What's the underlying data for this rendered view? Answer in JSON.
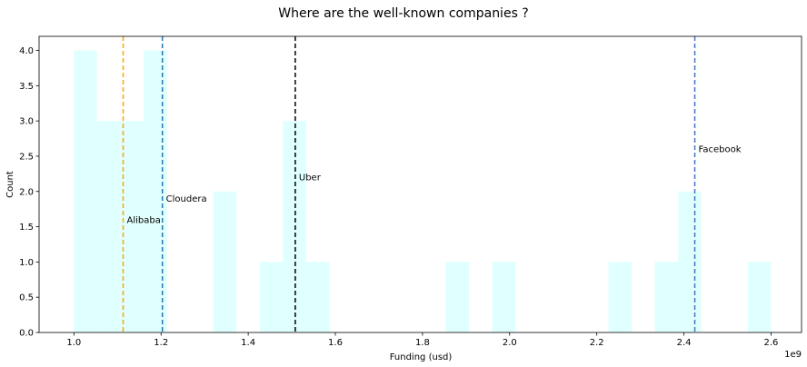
{
  "chart_data": {
    "type": "bar",
    "title": "Where are the well-known companies ?",
    "xlabel": "Funding (usd)",
    "ylabel": "Count",
    "x_offset_label": "1e9",
    "xlim": [
      0.92,
      2.67
    ],
    "ylim": [
      0,
      4.2
    ],
    "grid": false,
    "bar_color": "#e0ffff",
    "x_ticks": [
      1.0,
      1.2,
      1.4,
      1.6,
      1.8,
      2.0,
      2.2,
      2.4,
      2.6
    ],
    "x_tick_labels": [
      "1.0",
      "1.2",
      "1.4",
      "1.6",
      "1.8",
      "2.0",
      "2.2",
      "2.4",
      "2.6"
    ],
    "y_ticks": [
      0.0,
      0.5,
      1.0,
      1.5,
      2.0,
      2.5,
      3.0,
      3.5,
      4.0
    ],
    "y_tick_labels": [
      "0.0",
      "0.5",
      "1.0",
      "1.5",
      "2.0",
      "2.5",
      "3.0",
      "3.5",
      "4.0"
    ],
    "bins": [
      {
        "start": 1.0,
        "end": 1.053,
        "count": 4
      },
      {
        "start": 1.053,
        "end": 1.107,
        "count": 3
      },
      {
        "start": 1.107,
        "end": 1.16,
        "count": 3
      },
      {
        "start": 1.16,
        "end": 1.213,
        "count": 4
      },
      {
        "start": 1.32,
        "end": 1.373,
        "count": 2
      },
      {
        "start": 1.427,
        "end": 1.48,
        "count": 1
      },
      {
        "start": 1.48,
        "end": 1.533,
        "count": 3
      },
      {
        "start": 1.533,
        "end": 1.587,
        "count": 1
      },
      {
        "start": 1.853,
        "end": 1.907,
        "count": 1
      },
      {
        "start": 1.96,
        "end": 2.013,
        "count": 1
      },
      {
        "start": 2.227,
        "end": 2.28,
        "count": 1
      },
      {
        "start": 2.333,
        "end": 2.387,
        "count": 1
      },
      {
        "start": 2.387,
        "end": 2.44,
        "count": 2
      },
      {
        "start": 2.547,
        "end": 2.6,
        "count": 1
      }
    ],
    "markers": [
      {
        "label": "Alibaba",
        "x": 1.113,
        "label_y": 1.6,
        "color": "#ffa500"
      },
      {
        "label": "Cloudera",
        "x": 1.203,
        "label_y": 1.9,
        "color": "#1f77b4"
      },
      {
        "label": "Uber",
        "x": 1.508,
        "label_y": 2.2,
        "color": "#000000"
      },
      {
        "label": "Facebook",
        "x": 2.425,
        "label_y": 2.6,
        "color": "#4472c4"
      }
    ]
  }
}
